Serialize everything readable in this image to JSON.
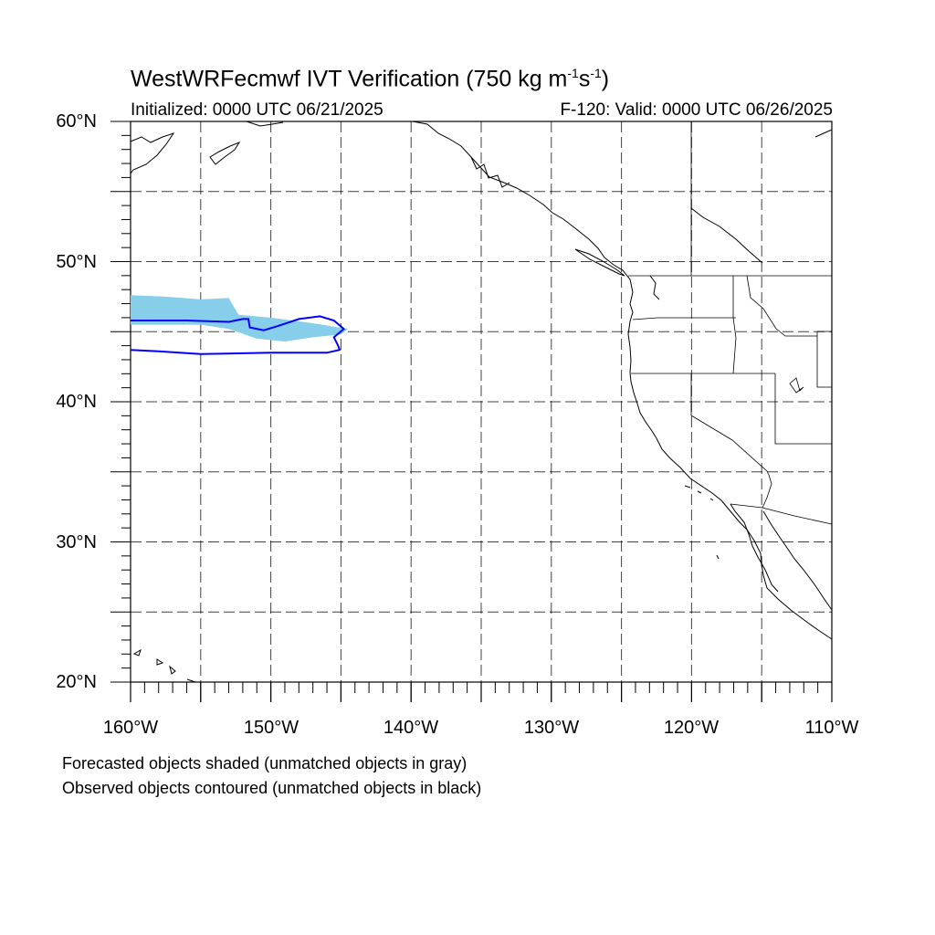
{
  "title": {
    "main": "WestWRFecmwf IVT Verification (750 kg m",
    "sup1": "-1",
    "mid": "s",
    "sup2": "-1",
    "end": ")"
  },
  "subtitle_left": "Initialized: 0000 UTC 06/21/2025",
  "subtitle_right": "F-120: Valid: 0000 UTC 06/26/2025",
  "map": {
    "lon_range": [
      -160,
      -110
    ],
    "lat_range": [
      20,
      60
    ],
    "grid": true,
    "grid_lons": [
      -155,
      -150,
      -145,
      -140,
      -135,
      -130,
      -125,
      -120,
      -115
    ],
    "grid_lats": [
      25,
      30,
      35,
      40,
      45,
      50,
      55
    ],
    "lat_labels": [
      {
        "lat": 60,
        "text": "60°N"
      },
      {
        "lat": 50,
        "text": "50°N"
      },
      {
        "lat": 40,
        "text": "40°N"
      },
      {
        "lat": 30,
        "text": "30°N"
      },
      {
        "lat": 20,
        "text": "20°N"
      }
    ],
    "lon_labels": [
      {
        "lon": -160,
        "text": "160°W"
      },
      {
        "lon": -150,
        "text": "150°W"
      },
      {
        "lon": -140,
        "text": "140°W"
      },
      {
        "lon": -130,
        "text": "130°W"
      },
      {
        "lon": -120,
        "text": "120°W"
      },
      {
        "lon": -110,
        "text": "110°W"
      }
    ],
    "forecast_object": {
      "color": "#87ceeb",
      "polygon": [
        [
          -160,
          47.6
        ],
        [
          -157.5,
          47.5
        ],
        [
          -155,
          47.3
        ],
        [
          -153,
          47.4
        ],
        [
          -152.3,
          46.2
        ],
        [
          -150,
          46.0
        ],
        [
          -147,
          45.6
        ],
        [
          -144.5,
          45.2
        ],
        [
          -145,
          44.8
        ],
        [
          -147,
          44.6
        ],
        [
          -149,
          44.3
        ],
        [
          -151,
          44.5
        ],
        [
          -153,
          45.2
        ],
        [
          -155,
          45.5
        ],
        [
          -158,
          45.5
        ],
        [
          -160,
          45.5
        ]
      ]
    },
    "observed_object": {
      "color": "#0000ff",
      "polygon": [
        [
          -160,
          45.8
        ],
        [
          -156,
          45.8
        ],
        [
          -153,
          45.7
        ],
        [
          -152,
          45.9
        ],
        [
          -151.6,
          45.9
        ],
        [
          -151.5,
          45.3
        ],
        [
          -150.5,
          45.1
        ],
        [
          -149.5,
          45.4
        ],
        [
          -148,
          45.9
        ],
        [
          -146.5,
          46.1
        ],
        [
          -145.5,
          45.8
        ],
        [
          -144.8,
          45.2
        ],
        [
          -145.5,
          44.6
        ],
        [
          -145.2,
          44.0
        ],
        [
          -145.1,
          43.7
        ],
        [
          -146,
          43.5
        ],
        [
          -150,
          43.5
        ],
        [
          -155,
          43.4
        ],
        [
          -158,
          43.6
        ],
        [
          -160,
          43.7
        ]
      ]
    },
    "coastline_color": "#000000"
  },
  "notes": [
    "Forecasted objects shaded (unmatched objects in gray)",
    "Observed objects contoured (unmatched objects in black)"
  ]
}
